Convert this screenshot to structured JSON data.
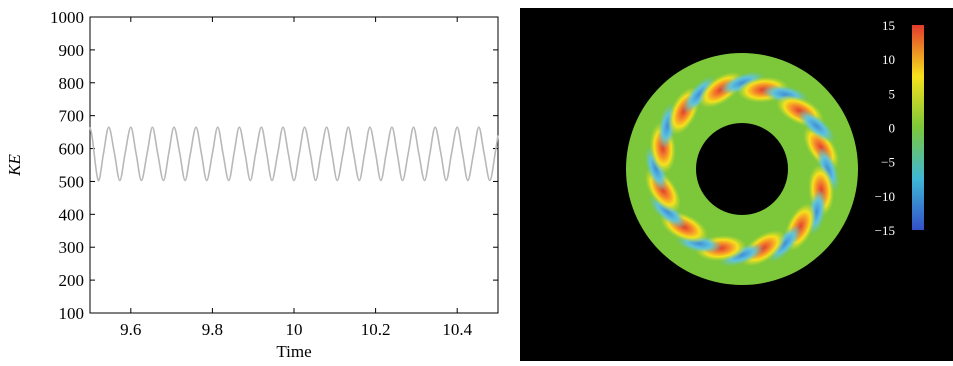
{
  "chart_data": [
    {
      "type": "line",
      "xlabel": "Time",
      "ylabel": "KE",
      "xlim": [
        9.5,
        10.5
      ],
      "ylim": [
        100,
        1000
      ],
      "xticks": [
        9.6,
        9.8,
        10,
        10.2,
        10.4
      ],
      "xtick_labels": [
        "9.6",
        "9.8",
        "10",
        "10.2",
        "10.4"
      ],
      "yticks": [
        100,
        200,
        300,
        400,
        500,
        600,
        700,
        800,
        900,
        1000
      ],
      "ytick_labels": [
        "100",
        "200",
        "300",
        "400",
        "500",
        "600",
        "700",
        "800",
        "900",
        "1000"
      ],
      "grid": false,
      "series": [
        {
          "color": "#b8b8b8",
          "x": [
            9.5,
            9.506,
            9.52,
            9.533,
            9.546,
            9.56,
            9.573,
            9.586,
            9.6,
            9.613,
            9.626,
            9.64,
            9.653,
            9.666,
            9.68,
            9.693,
            9.706,
            9.72,
            9.733,
            9.746,
            9.76,
            9.773,
            9.786,
            9.8,
            9.813,
            9.826,
            9.84,
            9.853,
            9.866,
            9.88,
            9.893,
            9.906,
            9.92,
            9.933,
            9.946,
            9.96,
            9.973,
            9.986,
            10.0,
            10.013,
            10.026,
            10.04,
            10.053,
            10.066,
            10.08,
            10.093,
            10.106,
            10.12,
            10.133,
            10.146,
            10.16,
            10.173,
            10.186,
            10.2,
            10.213,
            10.226,
            10.24,
            10.253,
            10.266,
            10.28,
            10.293,
            10.306,
            10.32,
            10.333,
            10.346,
            10.36,
            10.373,
            10.386,
            10.4,
            10.413,
            10.426,
            10.44,
            10.453,
            10.466,
            10.48,
            10.493,
            10.5
          ],
          "y": [
            665,
            630,
            503,
            585,
            665,
            585,
            503,
            585,
            665,
            585,
            503,
            585,
            665,
            585,
            503,
            585,
            665,
            585,
            503,
            585,
            665,
            585,
            503,
            585,
            665,
            585,
            503,
            585,
            665,
            585,
            503,
            585,
            665,
            585,
            503,
            585,
            665,
            585,
            503,
            585,
            665,
            585,
            503,
            585,
            665,
            585,
            503,
            585,
            665,
            585,
            503,
            585,
            665,
            585,
            503,
            585,
            665,
            585,
            503,
            585,
            665,
            585,
            503,
            585,
            665,
            585,
            503,
            585,
            665,
            585,
            503,
            585,
            665,
            585,
            503,
            585,
            640
          ]
        }
      ]
    },
    {
      "type": "heatmap",
      "shape": "annulus",
      "background": "#000000",
      "colorbar": {
        "range": [
          -15,
          15
        ],
        "ticks": [
          15,
          10,
          5,
          0,
          -5,
          -10,
          -15
        ],
        "tick_labels": [
          "15",
          "10",
          "5",
          "0",
          "−5",
          "−10",
          "−15"
        ],
        "colors": [
          "#e23b2d",
          "#f7e11c",
          "#7cc73a",
          "#3fb8d6",
          "#3350c9"
        ]
      },
      "base_color": "#7cc73a",
      "pattern": "twelve pairs of positive (red-yellow) and negative (blue) lobes arranged around the annulus"
    }
  ]
}
